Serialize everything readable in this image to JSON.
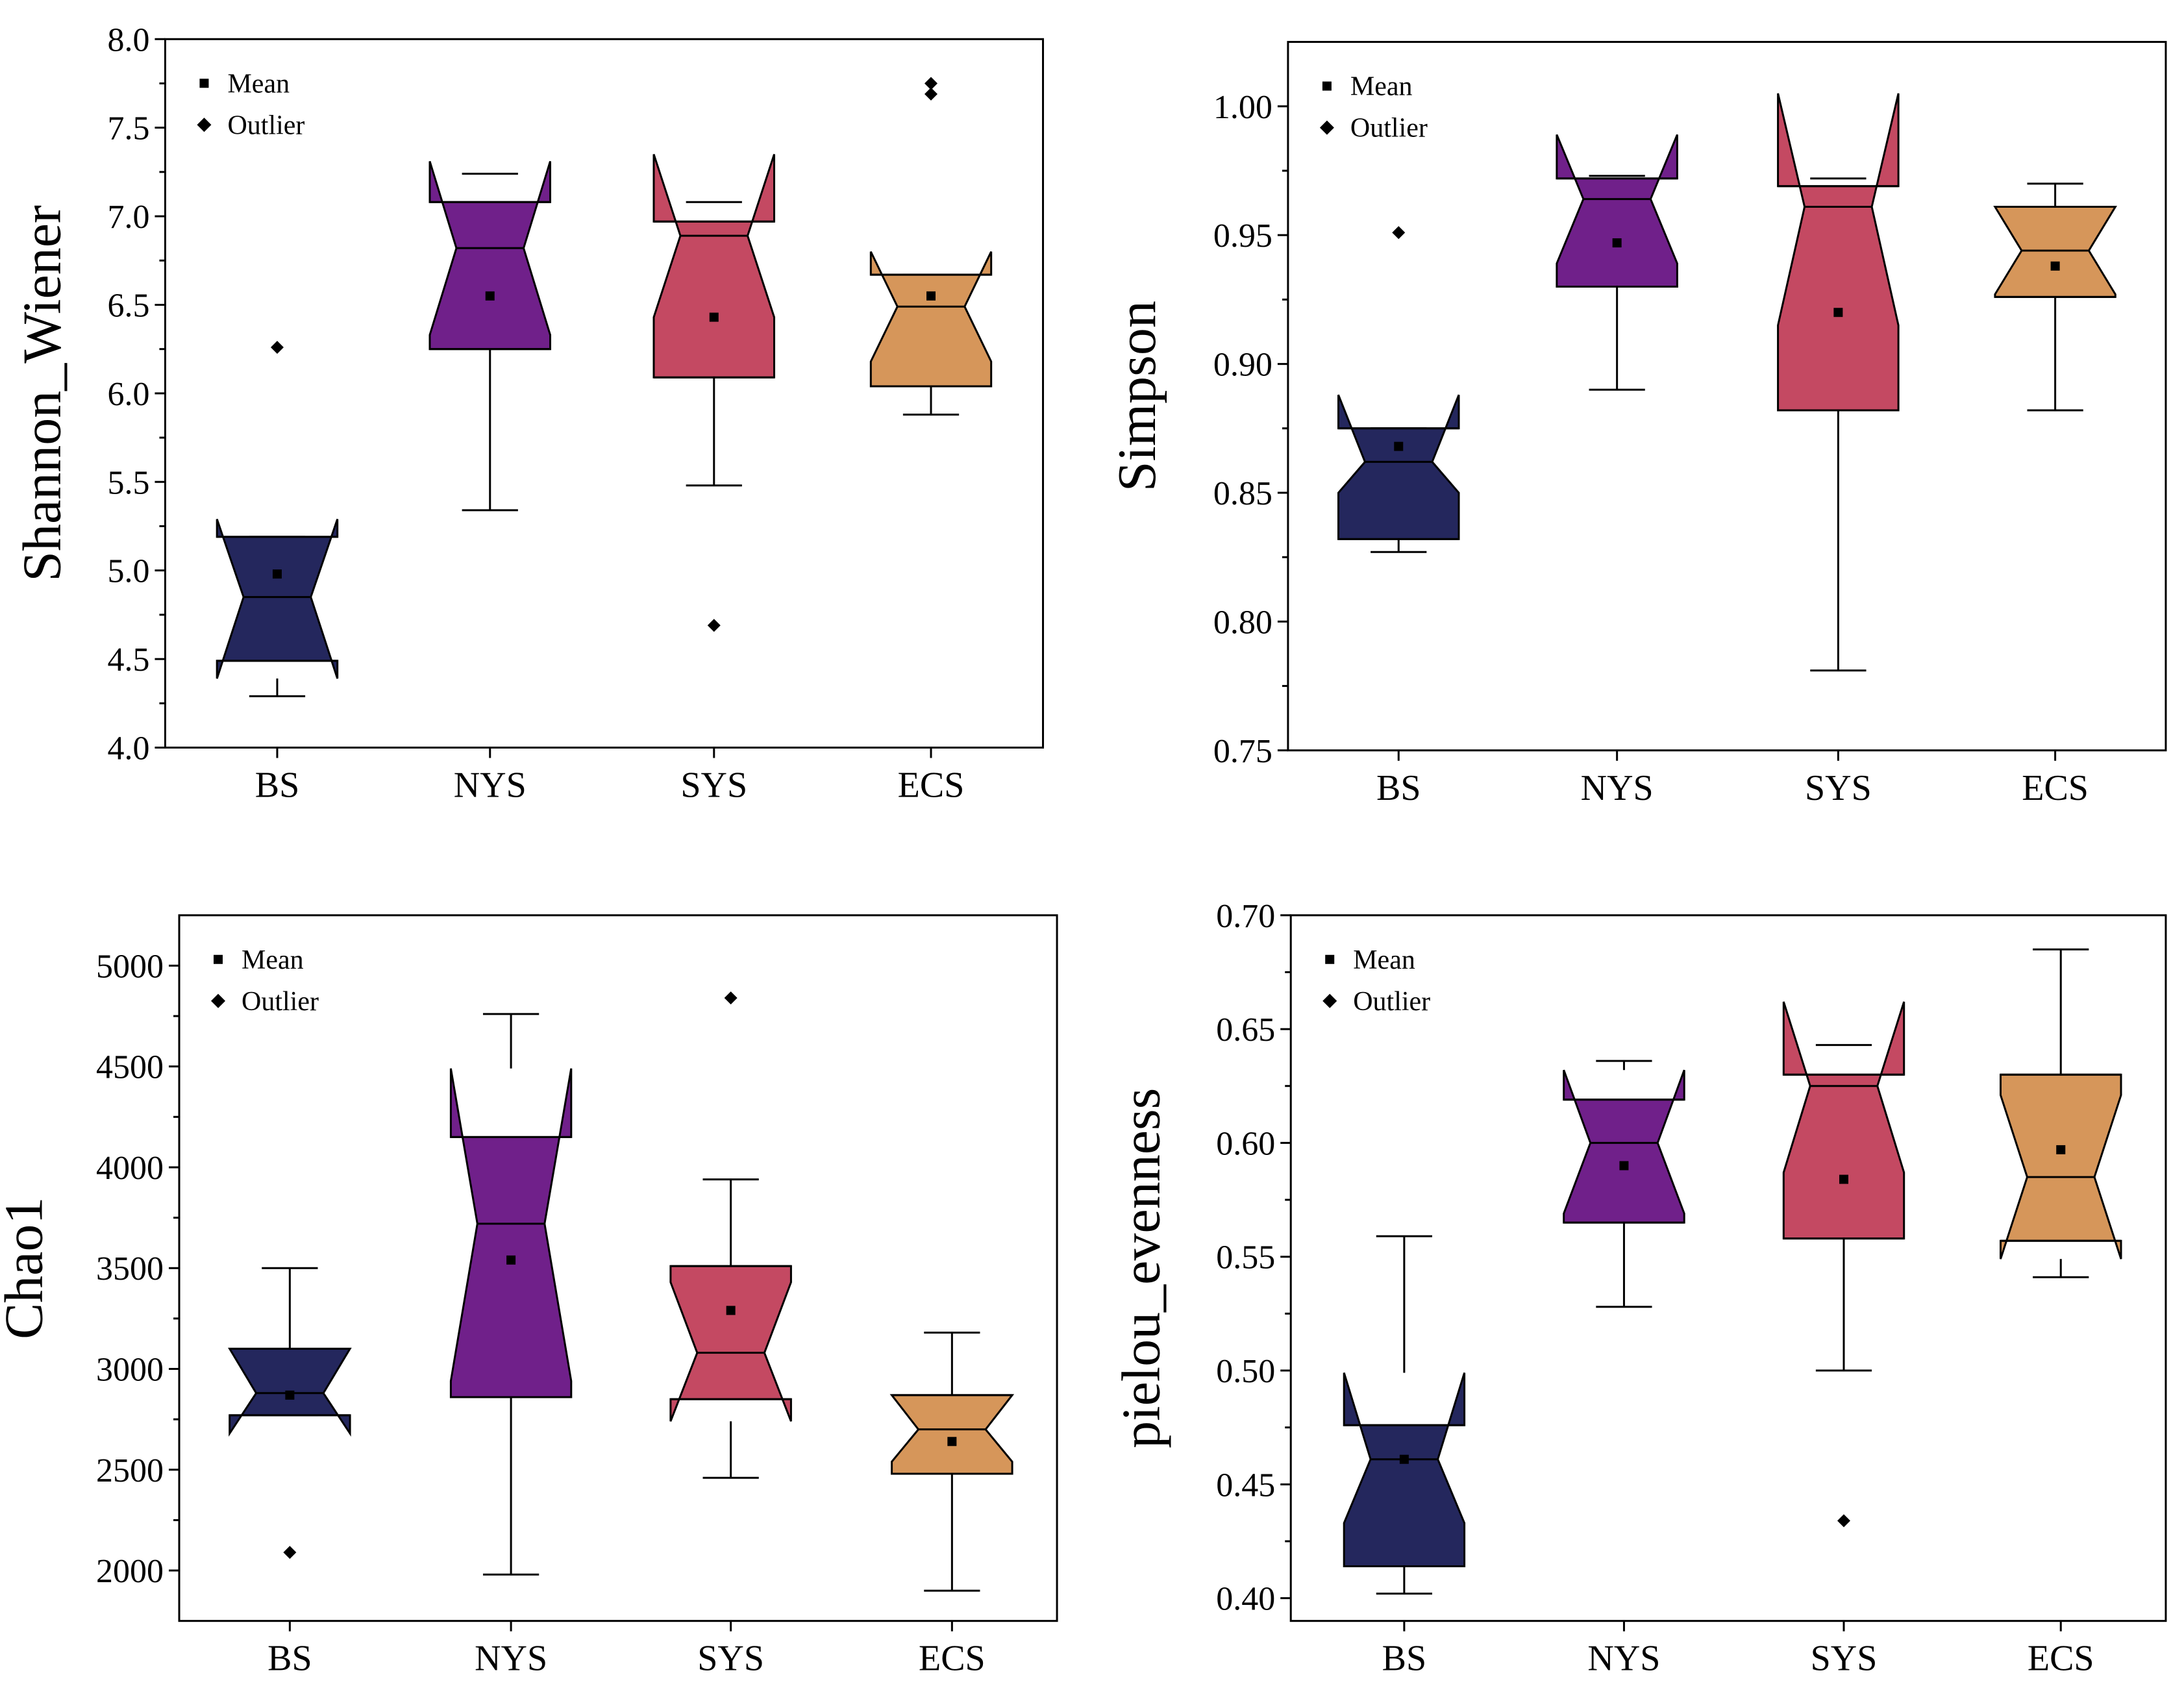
{
  "colors": {
    "BS": "#24275d",
    "NYS": "#70208a",
    "SYS": "#c44962",
    "ECS": "#d6965a",
    "ink": "#000000"
  },
  "legend": {
    "mean_label": "Mean",
    "outlier_label": "Outlier"
  },
  "chart_data": [
    {
      "type": "notched-box",
      "panel": "top-left",
      "ylabel": "Shannon_Wiener",
      "ylim": [
        4.0,
        8.0
      ],
      "yticks": [
        4.0,
        4.5,
        5.0,
        5.5,
        6.0,
        6.5,
        7.0,
        7.5,
        8.0
      ],
      "tick_decimals": 1,
      "legend_position": "top-left",
      "categories": [
        "BS",
        "NYS",
        "SYS",
        "ECS"
      ],
      "boxes": [
        {
          "name": "BS",
          "q1": 4.49,
          "median": 4.85,
          "q3": 5.19,
          "notch_low": 4.39,
          "notch_high": 5.29,
          "whisker_low": 4.29,
          "whisker_high": 5.19,
          "mean": 4.98,
          "outliers": [
            6.26
          ]
        },
        {
          "name": "NYS",
          "q1": 6.25,
          "median": 6.82,
          "q3": 7.08,
          "notch_low": 6.33,
          "notch_high": 7.31,
          "whisker_low": 5.34,
          "whisker_high": 7.24,
          "mean": 6.55,
          "outliers": []
        },
        {
          "name": "SYS",
          "q1": 6.09,
          "median": 6.89,
          "q3": 6.97,
          "notch_low": 6.43,
          "notch_high": 7.35,
          "whisker_low": 5.48,
          "whisker_high": 7.08,
          "mean": 6.43,
          "outliers": [
            4.69
          ]
        },
        {
          "name": "ECS",
          "q1": 6.04,
          "median": 6.49,
          "q3": 6.67,
          "notch_low": 6.18,
          "notch_high": 6.8,
          "whisker_low": 5.88,
          "whisker_high": 6.67,
          "mean": 6.55,
          "outliers": [
            7.69,
            7.75
          ]
        }
      ]
    },
    {
      "type": "notched-box",
      "panel": "top-right",
      "ylabel": "Simpson",
      "ylim": [
        0.75,
        1.025
      ],
      "yticks": [
        0.75,
        0.8,
        0.85,
        0.9,
        0.95,
        1.0
      ],
      "tick_decimals": 2,
      "legend_position": "top-left",
      "categories": [
        "BS",
        "NYS",
        "SYS",
        "ECS"
      ],
      "boxes": [
        {
          "name": "BS",
          "q1": 0.832,
          "median": 0.862,
          "q3": 0.875,
          "notch_low": 0.85,
          "notch_high": 0.888,
          "whisker_low": 0.827,
          "whisker_high": 0.875,
          "mean": 0.868,
          "outliers": [
            0.951
          ]
        },
        {
          "name": "NYS",
          "q1": 0.93,
          "median": 0.964,
          "q3": 0.972,
          "notch_low": 0.939,
          "notch_high": 0.989,
          "whisker_low": 0.89,
          "whisker_high": 0.973,
          "mean": 0.947,
          "outliers": []
        },
        {
          "name": "SYS",
          "q1": 0.882,
          "median": 0.961,
          "q3": 0.969,
          "notch_low": 0.915,
          "notch_high": 1.005,
          "whisker_low": 0.781,
          "whisker_high": 0.972,
          "mean": 0.92,
          "outliers": []
        },
        {
          "name": "ECS",
          "q1": 0.926,
          "median": 0.944,
          "q3": 0.961,
          "notch_low": 0.927,
          "notch_high": 0.961,
          "whisker_low": 0.882,
          "whisker_high": 0.97,
          "mean": 0.938,
          "outliers": []
        }
      ]
    },
    {
      "type": "notched-box",
      "panel": "bottom-left",
      "ylabel": "Chao1",
      "ylim": [
        1750,
        5250
      ],
      "yticks": [
        2000,
        2500,
        3000,
        3500,
        4000,
        4500,
        5000
      ],
      "tick_decimals": 0,
      "legend_position": "top-left",
      "categories": [
        "BS",
        "NYS",
        "SYS",
        "ECS"
      ],
      "boxes": [
        {
          "name": "BS",
          "q1": 2770,
          "median": 2880,
          "q3": 3100,
          "notch_low": 2680,
          "notch_high": 3100,
          "whisker_low": 2770,
          "whisker_high": 3500,
          "mean": 2870,
          "outliers": [
            2090
          ]
        },
        {
          "name": "NYS",
          "q1": 2860,
          "median": 3720,
          "q3": 4150,
          "notch_low": 2940,
          "notch_high": 4490,
          "whisker_low": 1980,
          "whisker_high": 4760,
          "mean": 3540,
          "outliers": []
        },
        {
          "name": "SYS",
          "q1": 2850,
          "median": 3080,
          "q3": 3510,
          "notch_low": 2740,
          "notch_high": 3430,
          "whisker_low": 2460,
          "whisker_high": 3940,
          "mean": 3290,
          "outliers": [
            4840
          ]
        },
        {
          "name": "ECS",
          "q1": 2480,
          "median": 2700,
          "q3": 2870,
          "notch_low": 2540,
          "notch_high": 2870,
          "whisker_low": 1900,
          "whisker_high": 3180,
          "mean": 2640,
          "outliers": []
        }
      ]
    },
    {
      "type": "notched-box",
      "panel": "bottom-right",
      "ylabel": "pielou_evenness",
      "ylim": [
        0.39,
        0.7
      ],
      "yticks": [
        0.4,
        0.45,
        0.5,
        0.55,
        0.6,
        0.65,
        0.7
      ],
      "tick_decimals": 2,
      "legend_position": "top-left",
      "categories": [
        "BS",
        "NYS",
        "SYS",
        "ECS"
      ],
      "boxes": [
        {
          "name": "BS",
          "q1": 0.414,
          "median": 0.461,
          "q3": 0.476,
          "notch_low": 0.433,
          "notch_high": 0.499,
          "whisker_low": 0.402,
          "whisker_high": 0.559,
          "mean": 0.461,
          "outliers": []
        },
        {
          "name": "NYS",
          "q1": 0.565,
          "median": 0.6,
          "q3": 0.619,
          "notch_low": 0.569,
          "notch_high": 0.632,
          "whisker_low": 0.528,
          "whisker_high": 0.636,
          "mean": 0.59,
          "outliers": []
        },
        {
          "name": "SYS",
          "q1": 0.558,
          "median": 0.625,
          "q3": 0.63,
          "notch_low": 0.587,
          "notch_high": 0.662,
          "whisker_low": 0.5,
          "whisker_high": 0.643,
          "mean": 0.584,
          "outliers": [
            0.434
          ]
        },
        {
          "name": "ECS",
          "q1": 0.557,
          "median": 0.585,
          "q3": 0.63,
          "notch_low": 0.549,
          "notch_high": 0.621,
          "whisker_low": 0.541,
          "whisker_high": 0.685,
          "mean": 0.597,
          "outliers": []
        }
      ]
    }
  ]
}
